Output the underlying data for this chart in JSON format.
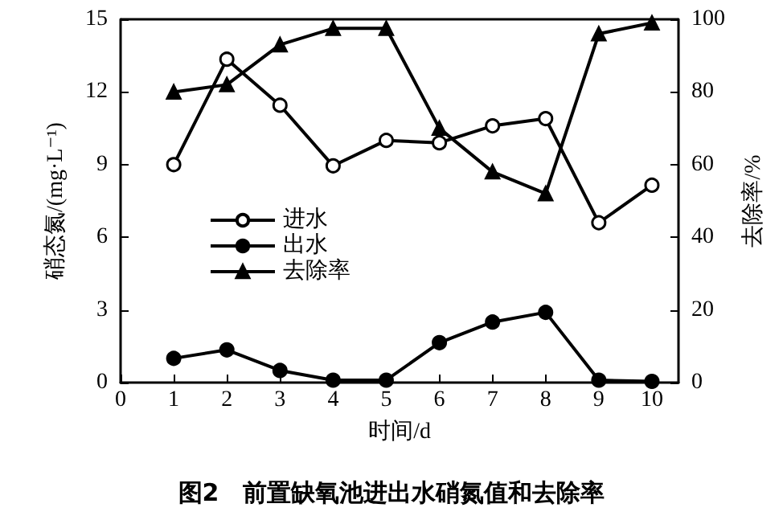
{
  "chart_data": {
    "type": "line",
    "title": "图2　前置缺氧池进出水硝氮值和去除率",
    "xlabel": "时间/d",
    "ylabel": "硝态氮/(mg·L⁻¹)",
    "y2label": "去除率/%",
    "x": [
      1,
      2,
      3,
      4,
      5,
      6,
      7,
      8,
      9,
      10
    ],
    "series": [
      {
        "name": "进水",
        "color": "#000000",
        "marker": "circle",
        "values": [
          9.0,
          13.35,
          11.45,
          8.95,
          10.0,
          9.9,
          10.6,
          10.9,
          6.6,
          8.15
        ]
      },
      {
        "name": "出水",
        "color": "#000000",
        "marker": "circle",
        "values": [
          1.0,
          1.35,
          0.5,
          0.1,
          0.1,
          1.65,
          2.5,
          2.9,
          0.1,
          0.05
        ]
      },
      {
        "name": "去除率",
        "color": "#000000",
        "marker": "triangle",
        "axis": "y2",
        "values": [
          80,
          82,
          93,
          97.5,
          97.5,
          70,
          58,
          52,
          96,
          99
        ]
      }
    ],
    "xlim": [
      0,
      10.5
    ],
    "xticks": [
      0,
      1,
      2,
      3,
      4,
      5,
      6,
      7,
      8,
      9,
      10
    ],
    "ylim": [
      0,
      15
    ],
    "yticks": [
      0,
      3,
      6,
      9,
      12,
      15
    ],
    "y2lim": [
      0,
      100
    ],
    "y2ticks": [
      0,
      20,
      40,
      60,
      80,
      100
    ],
    "grid": false,
    "legend": "left",
    "line_style": "solid"
  }
}
